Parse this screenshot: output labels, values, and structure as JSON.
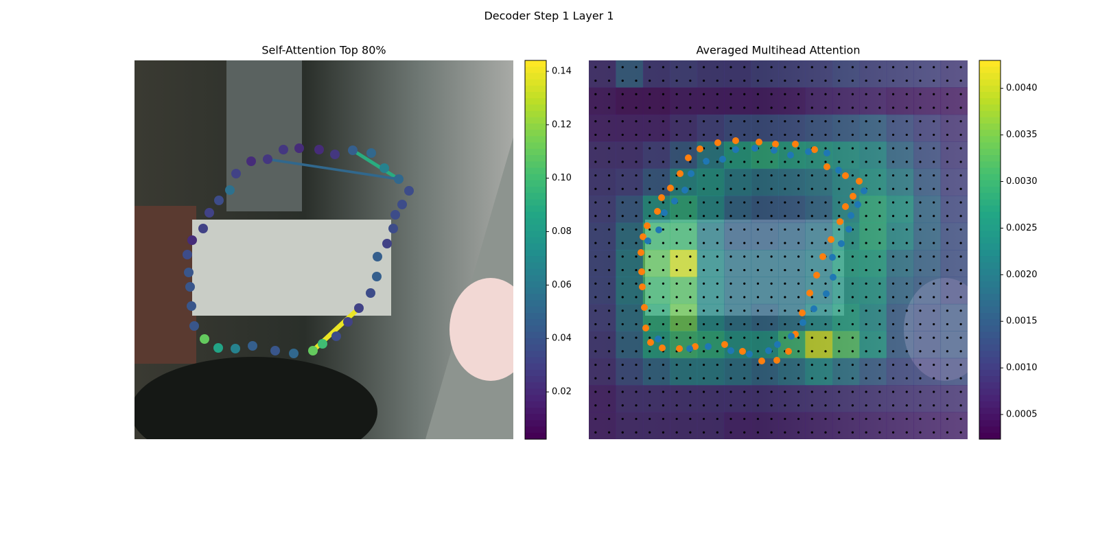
{
  "title": "Decoder Step 1 Layer 1",
  "chart_data": [
    {
      "type": "scatter",
      "title": "Self-Attention Top 80%",
      "xlim": [
        0,
        552
      ],
      "ylim": [
        552,
        0
      ],
      "x": [
        102,
        122,
        147,
        172,
        205,
        232,
        260,
        274,
        294,
        311,
        327,
        344,
        353,
        354,
        368,
        377,
        380,
        390,
        400,
        385,
        364,
        345,
        318,
        292,
        269,
        240,
        217,
        194,
        170,
        148,
        139,
        123,
        109,
        100,
        84,
        77,
        79,
        81,
        83,
        87
      ],
      "y": [
        406,
        419,
        420,
        416,
        423,
        427,
        423,
        413,
        402,
        381,
        361,
        339,
        315,
        286,
        267,
        245,
        225,
        210,
        190,
        173,
        157,
        135,
        131,
        137,
        130,
        128,
        130,
        144,
        147,
        165,
        189,
        204,
        222,
        245,
        262,
        283,
        309,
        330,
        358,
        387
      ],
      "values": [
        0.11,
        0.085,
        0.065,
        0.045,
        0.04,
        0.05,
        0.11,
        0.1,
        0.035,
        0.03,
        0.03,
        0.035,
        0.045,
        0.045,
        0.03,
        0.035,
        0.035,
        0.035,
        0.035,
        0.05,
        0.065,
        0.05,
        0.045,
        0.025,
        0.02,
        0.02,
        0.025,
        0.025,
        0.02,
        0.03,
        0.055,
        0.035,
        0.03,
        0.03,
        0.02,
        0.035,
        0.04,
        0.04,
        0.04,
        0.04
      ],
      "edges": [
        {
          "from": 6,
          "to": 10,
          "value": 0.14
        },
        {
          "from": 19,
          "to": 22,
          "value": 0.09
        },
        {
          "from": 19,
          "to": 27,
          "value": 0.05
        }
      ],
      "clim": [
        0.0023,
        0.1441
      ],
      "cticks": [
        0.02,
        0.04,
        0.06,
        0.08,
        {
          "value": 0.1,
          "label": "0.10"
        },
        0.12,
        0.14
      ]
    },
    {
      "type": "heatmap",
      "title": "Averaged Multihead Attention",
      "xlim": [
        0,
        552
      ],
      "ylim": [
        552,
        0
      ],
      "heatmap": [
        [
          0.0008,
          0.0015,
          0.0009,
          0.001,
          0.0009,
          0.0009,
          0.001,
          0.001,
          0.001,
          0.0011,
          0.001,
          0.001,
          0.001,
          0.0009
        ],
        [
          0.0005,
          0.0004,
          0.0004,
          0.0005,
          0.0005,
          0.0005,
          0.0005,
          0.0005,
          0.0006,
          0.0006,
          0.0006,
          0.0005,
          0.0005,
          0.0005
        ],
        [
          0.0006,
          0.0006,
          0.0006,
          0.0008,
          0.001,
          0.0012,
          0.0012,
          0.0012,
          0.0013,
          0.0014,
          0.0015,
          0.0012,
          0.001,
          0.0008
        ],
        [
          0.0008,
          0.0008,
          0.001,
          0.0014,
          0.002,
          0.0026,
          0.0028,
          0.0026,
          0.0025,
          0.0024,
          0.0022,
          0.0016,
          0.0012,
          0.0009
        ],
        [
          0.0009,
          0.001,
          0.0014,
          0.0022,
          0.0024,
          0.002,
          0.0018,
          0.0018,
          0.0019,
          0.0022,
          0.0024,
          0.002,
          0.0014,
          0.001
        ],
        [
          0.001,
          0.0014,
          0.0024,
          0.0028,
          0.0022,
          0.0016,
          0.0014,
          0.0014,
          0.0016,
          0.0022,
          0.0028,
          0.0024,
          0.0016,
          0.0011
        ],
        [
          0.0011,
          0.0018,
          0.003,
          0.003,
          0.002,
          0.0015,
          0.0015,
          0.0016,
          0.0018,
          0.0024,
          0.0028,
          0.0022,
          0.0016,
          0.0012
        ],
        [
          0.0011,
          0.002,
          0.0033,
          0.004,
          0.0022,
          0.0018,
          0.0018,
          0.0018,
          0.002,
          0.0026,
          0.0026,
          0.0018,
          0.0015,
          0.0012
        ],
        [
          0.0011,
          0.002,
          0.003,
          0.0032,
          0.0022,
          0.0018,
          0.0018,
          0.0018,
          0.002,
          0.0024,
          0.0024,
          0.0016,
          0.0014,
          0.0012
        ],
        [
          0.001,
          0.0018,
          0.0028,
          0.0034,
          0.0022,
          0.0018,
          0.0016,
          0.0018,
          0.0022,
          0.0026,
          0.0022,
          0.0014,
          0.0013,
          0.0014
        ],
        [
          0.0009,
          0.0016,
          0.0026,
          0.003,
          0.0028,
          0.0024,
          0.0024,
          0.003,
          0.004,
          0.0032,
          0.0024,
          0.0014,
          0.0013,
          0.0014
        ],
        [
          0.0008,
          0.0012,
          0.0016,
          0.002,
          0.002,
          0.0018,
          0.0016,
          0.0018,
          0.0022,
          0.0018,
          0.0014,
          0.0011,
          0.0011,
          0.0012
        ],
        [
          0.0006,
          0.0008,
          0.0008,
          0.0008,
          0.0008,
          0.0008,
          0.0008,
          0.0008,
          0.0008,
          0.0008,
          0.0008,
          0.0008,
          0.0008,
          0.0008
        ],
        [
          0.0006,
          0.0007,
          0.0007,
          0.0007,
          0.0007,
          0.0006,
          0.0006,
          0.0006,
          0.0006,
          0.0006,
          0.0006,
          0.0006,
          0.0006,
          0.0006
        ]
      ],
      "series": [
        {
          "color": "#ff7f0e",
          "x": [
            90,
            107,
            132,
            155,
            198,
            224,
            252,
            274,
            291,
            301,
            311,
            322,
            332,
            341,
            353,
            366,
            374,
            385,
            394,
            374,
            347,
            329,
            301,
            272,
            248,
            214,
            188,
            162,
            145,
            133,
            119,
            106,
            100,
            85,
            79,
            76,
            77,
            78,
            81,
            83
          ],
          "y": [
            411,
            419,
            420,
            417,
            414,
            424,
            438,
            437,
            424,
            399,
            368,
            339,
            313,
            286,
            261,
            235,
            213,
            198,
            176,
            168,
            155,
            130,
            122,
            122,
            119,
            117,
            120,
            129,
            142,
            165,
            186,
            200,
            220,
            241,
            257,
            280,
            308,
            330,
            360,
            390
          ]
        },
        {
          "color": "#1f77b4",
          "x": [
            101,
            147,
            174,
            207,
            234,
            262,
            275,
            295,
            312,
            328,
            346,
            356,
            355,
            368,
            379,
            382,
            392,
            401,
            364,
            347,
            320,
            294,
            270,
            242,
            214,
            195,
            171,
            149,
            140,
            125,
            110,
            102,
            86
          ],
          "y": [
            406,
            420,
            417,
            423,
            428,
            423,
            414,
            402,
            382,
            362,
            340,
            316,
            287,
            267,
            246,
            226,
            210,
            190,
            160,
            135,
            133,
            138,
            131,
            128,
            130,
            144,
            147,
            165,
            189,
            205,
            222,
            247,
            263
          ]
        }
      ],
      "clim": [
        0.000235,
        0.0043
      ],
      "cticks": [
        0.0005,
        {
          "value": 0.001,
          "label": "0.0010"
        },
        0.0015,
        {
          "value": 0.002,
          "label": "0.0020"
        },
        0.0025,
        {
          "value": 0.003,
          "label": "0.0030"
        },
        0.0035,
        {
          "value": 0.004,
          "label": "0.0040"
        }
      ]
    }
  ]
}
